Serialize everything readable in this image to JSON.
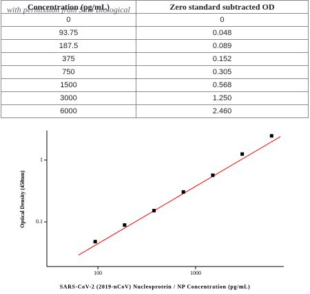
{
  "table": {
    "header": [
      "Concentration (pg/mL)",
      "Zero standard subtracted OD"
    ],
    "rows": [
      [
        "0",
        "0"
      ],
      [
        "93.75",
        "0.048"
      ],
      [
        "187.5",
        "0.089"
      ],
      [
        "375",
        "0.152"
      ],
      [
        "750",
        "0.305"
      ],
      [
        "1500",
        "0.568"
      ],
      [
        "3000",
        "1.250"
      ],
      [
        "6000",
        "2.460"
      ]
    ]
  },
  "watermark": "with permission from Sino Biological",
  "chart_data": {
    "type": "scatter",
    "x_label": "SARS-CoV-2 (2019-nCoV) Nucleoprotein / NP Concentration (pg/mL)",
    "y_label": "Optical Density (450nm)",
    "x_log": true,
    "y_log": true,
    "xlim": [
      30,
      8000
    ],
    "ylim": [
      0.019,
      3
    ],
    "xticks": [
      100,
      1000
    ],
    "yticks": [
      0.1,
      1
    ],
    "series": [
      {
        "x": [
          93.75,
          187.5,
          375,
          750,
          1500,
          3000,
          6000
        ],
        "values": [
          0.048,
          0.089,
          0.152,
          0.305,
          0.568,
          1.25,
          2.46
        ],
        "color": "#000000"
      }
    ],
    "fit_line": {
      "x": [
        63,
        7400
      ],
      "values": [
        0.029,
        2.4
      ],
      "color": "#ff0000"
    }
  }
}
